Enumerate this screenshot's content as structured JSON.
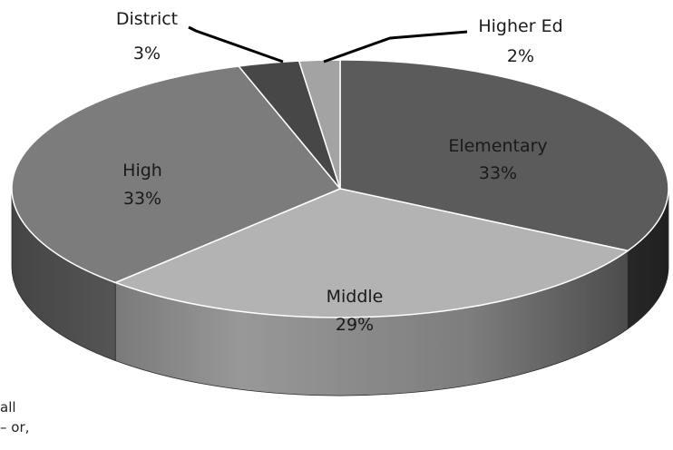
{
  "chart_data": {
    "type": "pie",
    "title": "",
    "slices": [
      {
        "label": "Elementary",
        "value": 33,
        "value_label": "33%",
        "color": "#5b5b5b"
      },
      {
        "label": "Middle",
        "value": 29,
        "value_label": "29%",
        "color": "#b3b3b3"
      },
      {
        "label": "High",
        "value": 33,
        "value_label": "33%",
        "color": "#7c7c7c"
      },
      {
        "label": "District",
        "value": 3,
        "value_label": "3%",
        "color": "#474747"
      },
      {
        "label": "Higher Ed",
        "value": 2,
        "value_label": "2%",
        "color": "#a3a3a3"
      }
    ],
    "style": "3d",
    "legend": "none"
  },
  "stray_text": [
    "all",
    "– or,"
  ]
}
